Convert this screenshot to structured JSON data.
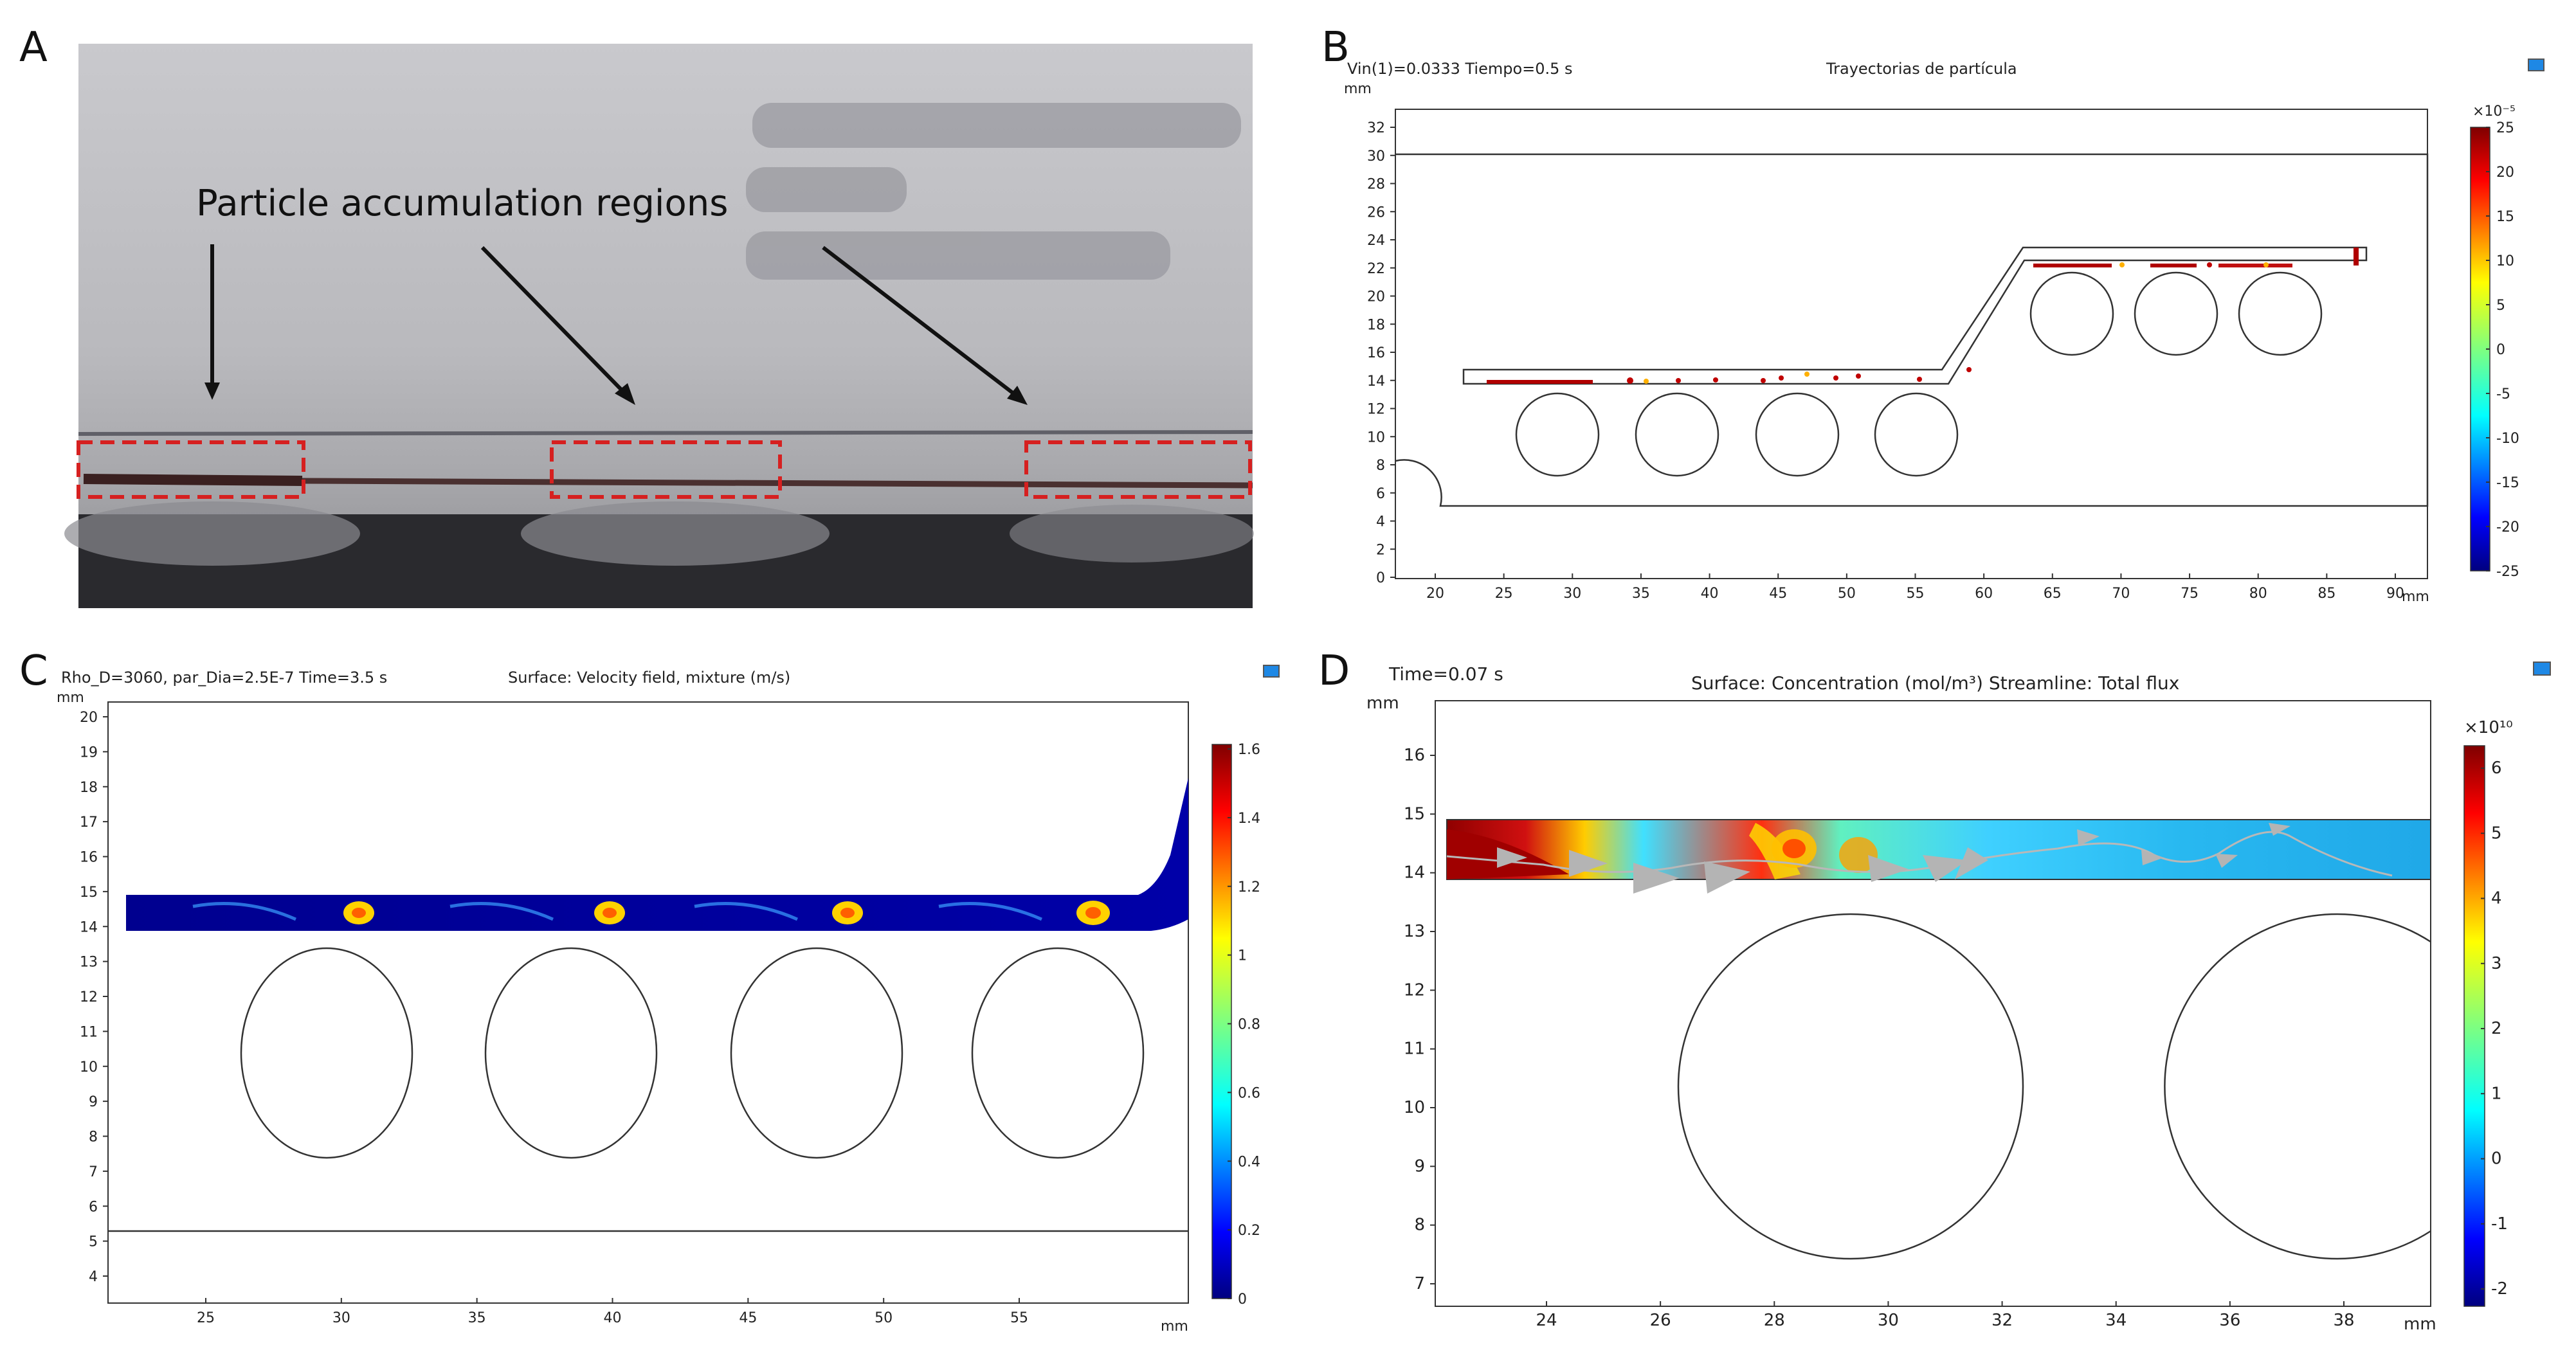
{
  "panel_labels": {
    "a": "A",
    "b": "B",
    "c": "C",
    "d": "D"
  },
  "panel_a": {
    "annotation": "Particle accumulation regions",
    "box_color": "#d62020"
  },
  "panel_b": {
    "header_left": "Vin(1)=0.0333 Tiempo=0.5 s",
    "title": "Trayectorias de partícula",
    "unit": "mm",
    "y_ticks": [
      "32",
      "30",
      "28",
      "26",
      "24",
      "22",
      "20",
      "18",
      "16",
      "14",
      "12",
      "10",
      "8",
      "6",
      "4",
      "2",
      "0"
    ],
    "x_ticks": [
      "20",
      "25",
      "30",
      "35",
      "40",
      "45",
      "50",
      "55",
      "60",
      "65",
      "70",
      "75",
      "80",
      "85",
      "90"
    ],
    "colorbar_exp": "×10⁻⁵",
    "colorbar_ticks": [
      "25",
      "20",
      "15",
      "10",
      "5",
      "0",
      "-5",
      "-10",
      "-15",
      "-20",
      "-25"
    ]
  },
  "panel_c": {
    "header_left": "Rho_D=3060, par_Dia=2.5E-7 Time=3.5 s",
    "title": "Surface: Velocity field, mixture (m/s)",
    "unit": "mm",
    "y_ticks": [
      "20",
      "19",
      "18",
      "17",
      "16",
      "15",
      "14",
      "13",
      "12",
      "11",
      "10",
      "9",
      "8",
      "7",
      "6",
      "5",
      "4"
    ],
    "x_ticks": [
      "25",
      "30",
      "35",
      "40",
      "45",
      "50",
      "55"
    ],
    "colorbar_ticks": [
      "1.6",
      "1.4",
      "1.2",
      "1",
      "0.8",
      "0.6",
      "0.4",
      "0.2",
      "0"
    ]
  },
  "panel_d": {
    "header_left": "Time=0.07 s",
    "title": "Surface: Concentration (mol/m³)  Streamline: Total flux",
    "unit": "mm",
    "y_ticks": [
      "16",
      "15",
      "14",
      "13",
      "12",
      "11",
      "10",
      "9",
      "8",
      "7"
    ],
    "x_ticks": [
      "24",
      "26",
      "28",
      "30",
      "32",
      "34",
      "36",
      "38"
    ],
    "colorbar_exp": "×10¹⁰",
    "colorbar_ticks": [
      "6",
      "5",
      "4",
      "3",
      "2",
      "1",
      "0",
      "-1",
      "-2"
    ]
  },
  "colors": {
    "jet_low": "#00007f",
    "jet_high": "#7f0000",
    "axis": "#222222"
  }
}
